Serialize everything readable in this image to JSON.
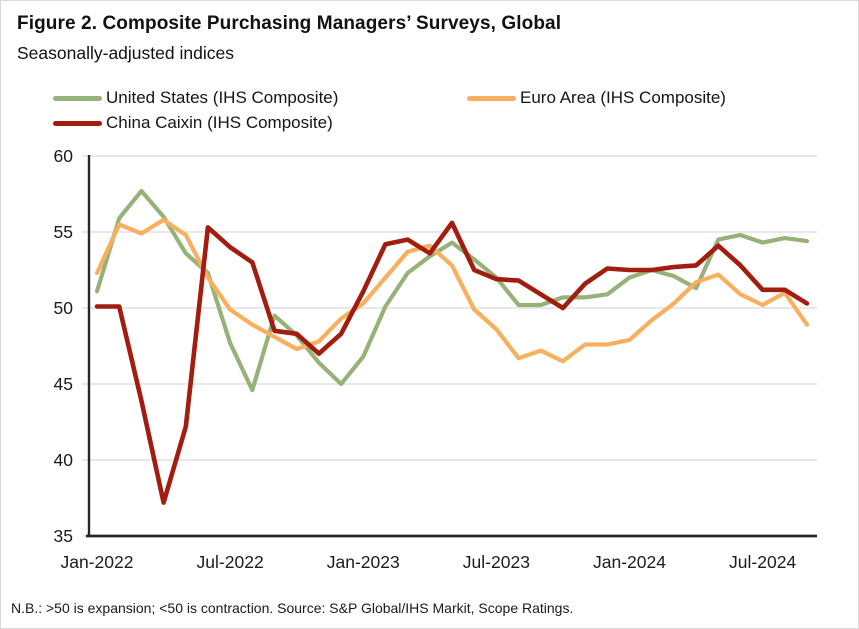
{
  "header": {
    "title": "Figure 2. Composite Purchasing Managers’ Surveys, Global",
    "subtitle": "Seasonally-adjusted indices"
  },
  "legend": {
    "items": [
      {
        "label": "United States (IHS Composite)",
        "color": "#97B279"
      },
      {
        "label": "Euro Area (IHS Composite)",
        "color": "#F8B05E"
      },
      {
        "label": "China Caixin (IHS Composite)",
        "color": "#A21D0F"
      }
    ]
  },
  "footer": {
    "note": "N.B.: >50 is expansion; <50 is contraction. Source: S&P Global/IHS Markit, Scope Ratings."
  },
  "chart_data": {
    "type": "line",
    "title": "Figure 2. Composite Purchasing Managers’ Surveys, Global",
    "subtitle": "Seasonally-adjusted indices",
    "xlabel": "",
    "ylabel": "",
    "ylim": [
      35,
      60
    ],
    "y_ticks": [
      35,
      40,
      45,
      50,
      55,
      60
    ],
    "grid": "horizontal",
    "legend_position": "top",
    "expansion_threshold": 50,
    "categories": [
      "Jan-2022",
      "Feb-2022",
      "Mar-2022",
      "Apr-2022",
      "May-2022",
      "Jun-2022",
      "Jul-2022",
      "Aug-2022",
      "Sep-2022",
      "Oct-2022",
      "Nov-2022",
      "Dec-2022",
      "Jan-2023",
      "Feb-2023",
      "Mar-2023",
      "Apr-2023",
      "May-2023",
      "Jun-2023",
      "Jul-2023",
      "Aug-2023",
      "Sep-2023",
      "Oct-2023",
      "Nov-2023",
      "Dec-2023",
      "Jan-2024",
      "Feb-2024",
      "Mar-2024",
      "Apr-2024",
      "May-2024",
      "Jun-2024",
      "Jul-2024",
      "Aug-2024",
      "Sep-2024"
    ],
    "x_tick_labels": [
      "Jan-2022",
      "Jul-2022",
      "Jan-2023",
      "Jul-2023",
      "Jan-2024",
      "Jul-2024"
    ],
    "x_tick_indices": [
      0,
      6,
      12,
      18,
      24,
      30
    ],
    "series": [
      {
        "name": "United States (IHS Composite)",
        "color": "#97B279",
        "values": [
          51.1,
          55.9,
          57.7,
          56.0,
          53.6,
          52.3,
          47.7,
          44.6,
          49.5,
          48.2,
          46.4,
          45.0,
          46.8,
          50.1,
          52.3,
          53.4,
          54.3,
          53.2,
          52.0,
          50.2,
          50.2,
          50.7,
          50.7,
          50.9,
          52.0,
          52.5,
          52.1,
          51.3,
          54.5,
          54.8,
          54.3,
          54.6,
          54.4
        ]
      },
      {
        "name": "Euro Area (IHS Composite)",
        "color": "#F8B05E",
        "values": [
          52.3,
          55.5,
          54.9,
          55.8,
          54.8,
          52.0,
          49.9,
          48.9,
          48.1,
          47.3,
          47.8,
          49.3,
          50.3,
          52.0,
          53.7,
          54.1,
          52.8,
          49.9,
          48.6,
          46.7,
          47.2,
          46.5,
          47.6,
          47.6,
          47.9,
          49.2,
          50.3,
          51.7,
          52.2,
          50.9,
          50.2,
          51.0,
          48.9
        ]
      },
      {
        "name": "China Caixin (IHS Composite)",
        "color": "#A21D0F",
        "values": [
          50.1,
          50.1,
          43.9,
          37.2,
          42.2,
          55.3,
          54.0,
          53.0,
          48.5,
          48.3,
          47.0,
          48.3,
          51.1,
          54.2,
          54.5,
          53.6,
          55.6,
          52.5,
          51.9,
          51.8,
          50.9,
          50.0,
          51.6,
          52.6,
          52.5,
          52.5,
          52.7,
          52.8,
          54.1,
          52.8,
          51.2,
          51.2,
          50.3
        ]
      }
    ]
  }
}
